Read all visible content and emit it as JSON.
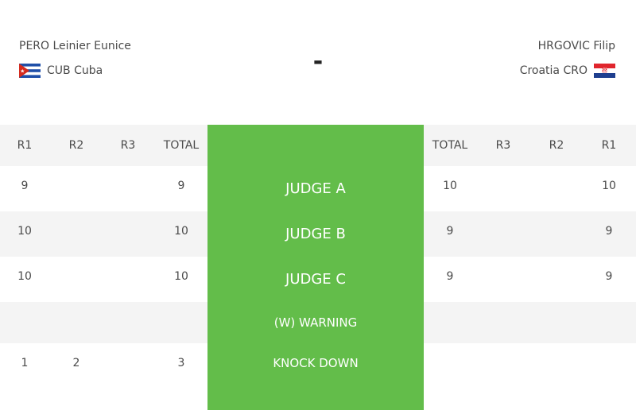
{
  "left_athlete": {
    "name": "PERO Leinier Eunice",
    "country": "CUB Cuba",
    "flag_icon": "cuba-flag-icon"
  },
  "right_athlete": {
    "name": "HRGOVIC Filip",
    "country": "Croatia CRO",
    "flag_icon": "croatia-flag-icon"
  },
  "score_center": "-",
  "columns_left": [
    "R1",
    "R2",
    "R3",
    "TOTAL"
  ],
  "columns_right": [
    "TOTAL",
    "R3",
    "R2",
    "R1"
  ],
  "rows": [
    {
      "label": "JUDGE A",
      "left": [
        "9",
        "",
        "",
        "9"
      ],
      "right": [
        "10",
        "",
        "",
        "10"
      ]
    },
    {
      "label": "JUDGE B",
      "left": [
        "10",
        "",
        "",
        "10"
      ],
      "right": [
        "9",
        "",
        "",
        "9"
      ]
    },
    {
      "label": "JUDGE C",
      "left": [
        "10",
        "",
        "",
        "10"
      ],
      "right": [
        "9",
        "",
        "",
        "9"
      ]
    },
    {
      "label": "(W) WARNING",
      "left": [
        "",
        "",
        "",
        ""
      ],
      "right": [
        "",
        "",
        "",
        ""
      ]
    },
    {
      "label": "KNOCK DOWN",
      "left": [
        "1",
        "2",
        "",
        "3"
      ],
      "right": [
        "",
        "",
        "",
        ""
      ]
    }
  ],
  "colors": {
    "panel_green": "#63bd4a",
    "row_shade": "#f4f4f4"
  }
}
